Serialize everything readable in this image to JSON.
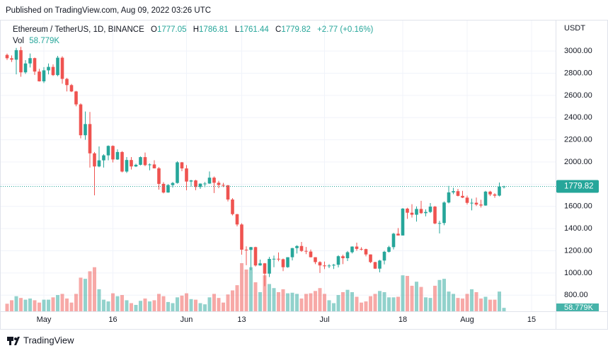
{
  "page": {
    "published": "Published on TradingView.com, Aug 09, 2022 03:26 UTC",
    "brand": "TradingView"
  },
  "chart_data": {
    "type": "candlestick",
    "title": "Ethereum / TetherUS, 1D, BINANCE",
    "o_label": "O",
    "h_label": "H",
    "l_label": "L",
    "c_label": "C",
    "change": "+2.77 (+0.16%)",
    "currency": "USDT",
    "up_color": "#26a69a",
    "down_color": "#ef5350",
    "grid": true,
    "x": [
      "2022-04-23",
      "2022-04-24",
      "2022-04-25",
      "2022-04-26",
      "2022-04-27",
      "2022-04-28",
      "2022-04-29",
      "2022-04-30",
      "2022-05-01",
      "2022-05-02",
      "2022-05-03",
      "2022-05-04",
      "2022-05-05",
      "2022-05-06",
      "2022-05-07",
      "2022-05-08",
      "2022-05-09",
      "2022-05-10",
      "2022-05-11",
      "2022-05-12",
      "2022-05-13",
      "2022-05-14",
      "2022-05-15",
      "2022-05-16",
      "2022-05-17",
      "2022-05-18",
      "2022-05-19",
      "2022-05-20",
      "2022-05-21",
      "2022-05-22",
      "2022-05-23",
      "2022-05-24",
      "2022-05-25",
      "2022-05-26",
      "2022-05-27",
      "2022-05-28",
      "2022-05-29",
      "2022-05-30",
      "2022-05-31",
      "2022-06-01",
      "2022-06-02",
      "2022-06-03",
      "2022-06-04",
      "2022-06-05",
      "2022-06-06",
      "2022-06-07",
      "2022-06-08",
      "2022-06-09",
      "2022-06-10",
      "2022-06-11",
      "2022-06-12",
      "2022-06-13",
      "2022-06-14",
      "2022-06-15",
      "2022-06-16",
      "2022-06-17",
      "2022-06-18",
      "2022-06-19",
      "2022-06-20",
      "2022-06-21",
      "2022-06-22",
      "2022-06-23",
      "2022-06-24",
      "2022-06-25",
      "2022-06-26",
      "2022-06-27",
      "2022-06-28",
      "2022-06-29",
      "2022-06-30",
      "2022-07-01",
      "2022-07-02",
      "2022-07-03",
      "2022-07-04",
      "2022-07-05",
      "2022-07-06",
      "2022-07-07",
      "2022-07-08",
      "2022-07-09",
      "2022-07-10",
      "2022-07-11",
      "2022-07-12",
      "2022-07-13",
      "2022-07-14",
      "2022-07-15",
      "2022-07-16",
      "2022-07-17",
      "2022-07-18",
      "2022-07-19",
      "2022-07-20",
      "2022-07-21",
      "2022-07-22",
      "2022-07-23",
      "2022-07-24",
      "2022-07-25",
      "2022-07-26",
      "2022-07-27",
      "2022-07-28",
      "2022-07-29",
      "2022-07-30",
      "2022-07-31",
      "2022-08-01",
      "2022-08-02",
      "2022-08-03",
      "2022-08-04",
      "2022-08-05",
      "2022-08-06",
      "2022-08-07",
      "2022-08-08",
      "2022-08-09"
    ],
    "open": [
      2965,
      2935,
      2922,
      3008,
      2808,
      2888,
      2936,
      2815,
      2727,
      2826,
      2857,
      2783,
      2940,
      2749,
      2693,
      2636,
      2519,
      2241,
      2342,
      2078,
      1960,
      2015,
      2060,
      2145,
      2023,
      2090,
      1914,
      2018,
      1960,
      1975,
      2044,
      1972,
      1978,
      1943,
      1803,
      1725,
      1792,
      1811,
      1997,
      1942,
      1824,
      1834,
      1775,
      1805,
      1806,
      1859,
      1813,
      1793,
      1790,
      1662,
      1530,
      1437,
      1210,
      1208,
      1233,
      1068,
      1087,
      994,
      1127,
      1128,
      1124,
      1052,
      1142,
      1224,
      1243,
      1199,
      1193,
      1142,
      1098,
      1068,
      1061,
      1067,
      1074,
      1151,
      1133,
      1187,
      1238,
      1217,
      1215,
      1167,
      1098,
      1039,
      1112,
      1191,
      1233,
      1354,
      1338,
      1580,
      1543,
      1525,
      1577,
      1539,
      1550,
      1598,
      1446,
      1450,
      1635,
      1726,
      1737,
      1695,
      1679,
      1632,
      1633,
      1617,
      1608,
      1733,
      1708,
      1697,
      1777.05
    ],
    "high": [
      2977,
      2960,
      3028,
      3038,
      2918,
      2978,
      2941,
      2840,
      2855,
      2888,
      2880,
      2956,
      2953,
      2758,
      2704,
      2641,
      2528,
      2455,
      2451,
      2090,
      2140,
      2070,
      2150,
      2150,
      2114,
      2098,
      2045,
      2045,
      1985,
      2050,
      2085,
      1987,
      2016,
      1955,
      1818,
      1801,
      1820,
      2007,
      2000,
      1972,
      1839,
      1840,
      1807,
      1820,
      1915,
      1869,
      1830,
      1812,
      1793,
      1674,
      1532,
      1448,
      1240,
      1235,
      1237,
      1120,
      1090,
      1145,
      1157,
      1185,
      1130,
      1142,
      1226,
      1250,
      1280,
      1234,
      1211,
      1143,
      1106,
      1103,
      1080,
      1081,
      1160,
      1165,
      1198,
      1240,
      1273,
      1232,
      1219,
      1167,
      1101,
      1118,
      1200,
      1245,
      1362,
      1405,
      1585,
      1587,
      1620,
      1600,
      1650,
      1573,
      1630,
      1603,
      1470,
      1645,
      1785,
      1768,
      1758,
      1740,
      1697,
      1670,
      1680,
      1660,
      1740,
      1740,
      1719,
      1815,
      1786.81
    ],
    "low": [
      2920,
      2901,
      2790,
      2768,
      2794,
      2852,
      2785,
      2725,
      2712,
      2790,
      2775,
      2773,
      2705,
      2636,
      2630,
      2502,
      2213,
      2200,
      1950,
      1700,
      1953,
      1950,
      2015,
      1996,
      2019,
      1907,
      1901,
      1932,
      1955,
      1970,
      1963,
      1925,
      1942,
      1751,
      1717,
      1723,
      1770,
      1805,
      1917,
      1745,
      1780,
      1746,
      1758,
      1773,
      1803,
      1720,
      1764,
      1774,
      1645,
      1519,
      1420,
      1165,
      1070,
      1025,
      1058,
      1065,
      881,
      963,
      1052,
      1105,
      1017,
      1047,
      1113,
      1175,
      1190,
      1170,
      1140,
      1080,
      1000,
      1035,
      1044,
      1036,
      1050,
      1080,
      1108,
      1176,
      1200,
      1203,
      1150,
      1089,
      1036,
      1006,
      1077,
      1184,
      1212,
      1338,
      1337,
      1488,
      1500,
      1463,
      1532,
      1510,
      1540,
      1440,
      1356,
      1430,
      1627,
      1710,
      1690,
      1675,
      1617,
      1564,
      1603,
      1590,
      1606,
      1693,
      1677,
      1690,
      1761.44
    ],
    "close": [
      2935,
      2922,
      3008,
      2808,
      2888,
      2936,
      2815,
      2727,
      2826,
      2857,
      2783,
      2940,
      2749,
      2693,
      2636,
      2519,
      2241,
      2342,
      2078,
      1960,
      2015,
      2060,
      2145,
      2023,
      2090,
      1914,
      2018,
      1960,
      1975,
      2044,
      1972,
      1978,
      1943,
      1803,
      1725,
      1792,
      1811,
      1997,
      1942,
      1824,
      1834,
      1775,
      1805,
      1806,
      1859,
      1813,
      1793,
      1790,
      1662,
      1530,
      1437,
      1210,
      1208,
      1233,
      1068,
      1087,
      994,
      1127,
      1128,
      1124,
      1052,
      1142,
      1224,
      1243,
      1199,
      1193,
      1142,
      1098,
      1068,
      1061,
      1067,
      1074,
      1151,
      1133,
      1187,
      1238,
      1217,
      1215,
      1167,
      1098,
      1039,
      1112,
      1191,
      1233,
      1354,
      1338,
      1580,
      1543,
      1525,
      1577,
      1539,
      1550,
      1598,
      1446,
      1450,
      1635,
      1726,
      1737,
      1695,
      1679,
      1632,
      1633,
      1617,
      1608,
      1733,
      1708,
      1697,
      1777.05,
      1779.82
    ],
    "volume": {
      "name": "Vol",
      "last_value_label": "58.779K",
      "values": [
        130,
        190,
        260,
        230,
        200,
        220,
        190,
        150,
        200,
        200,
        240,
        280,
        300,
        220,
        150,
        300,
        580,
        560,
        690,
        760,
        380,
        200,
        170,
        310,
        260,
        280,
        190,
        140,
        110,
        180,
        220,
        170,
        190,
        300,
        260,
        160,
        140,
        240,
        270,
        310,
        210,
        200,
        140,
        120,
        240,
        300,
        230,
        150,
        290,
        360,
        450,
        830,
        720,
        760,
        500,
        330,
        620,
        470,
        400,
        330,
        380,
        310,
        320,
        300,
        220,
        300,
        310,
        350,
        400,
        300,
        190,
        140,
        280,
        330,
        370,
        330,
        250,
        150,
        170,
        260,
        300,
        350,
        330,
        240,
        240,
        250,
        620,
        610,
        440,
        510,
        420,
        240,
        230,
        440,
        540,
        560,
        340,
        300,
        230,
        220,
        300,
        380,
        330,
        220,
        250,
        200,
        200,
        340,
        58.779
      ]
    },
    "ylim": [
      655,
      3275
    ],
    "yticks": [
      {
        "value": 800,
        "label": "800.00"
      },
      {
        "value": 1000,
        "label": "1000.00"
      },
      {
        "value": 1200,
        "label": "1200.00"
      },
      {
        "value": 1400,
        "label": "1400.00"
      },
      {
        "value": 1600,
        "label": "1600.00"
      },
      {
        "value": 1800,
        "label": "1800.00"
      },
      {
        "value": 2000,
        "label": "2000.00"
      },
      {
        "value": 2200,
        "label": "2200.00"
      },
      {
        "value": 2400,
        "label": "2400.00"
      },
      {
        "value": 2600,
        "label": "2600.00"
      },
      {
        "value": 2800,
        "label": "2800.00"
      },
      {
        "value": 3000,
        "label": "3000.00"
      }
    ],
    "xticks": [
      {
        "value": "2022-05-01",
        "label": "May"
      },
      {
        "value": "2022-05-16",
        "label": "16"
      },
      {
        "value": "2022-06-01",
        "label": "Jun"
      },
      {
        "value": "2022-06-13",
        "label": "13"
      },
      {
        "value": "2022-07-01",
        "label": "Jul"
      },
      {
        "value": "2022-07-18",
        "label": "18"
      },
      {
        "value": "2022-08-01",
        "label": "Aug"
      },
      {
        "value": "2022-08-15",
        "label": "15"
      }
    ]
  }
}
